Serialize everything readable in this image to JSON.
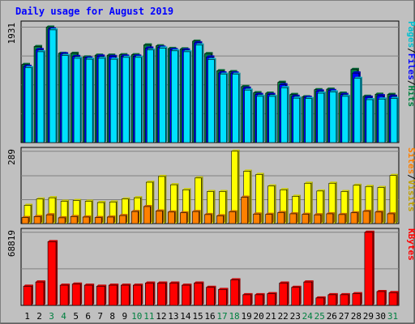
{
  "chart_data": [
    {
      "type": "bar",
      "panel": "hits-files-pages",
      "title": "Daily usage for August 2019",
      "categories": [
        "1",
        "2",
        "3",
        "4",
        "5",
        "6",
        "7",
        "8",
        "9",
        "10",
        "11",
        "12",
        "13",
        "14",
        "15",
        "16",
        "17",
        "18",
        "19",
        "20",
        "21",
        "22",
        "23",
        "24",
        "25",
        "26",
        "27",
        "28",
        "29",
        "30",
        "31"
      ],
      "weekend_days": [
        "3",
        "4",
        "10",
        "11",
        "17",
        "18",
        "24",
        "25",
        "31"
      ],
      "ymax_label": "1931",
      "ylim": [
        0,
        1931
      ],
      "series": [
        {
          "name": "Hits",
          "color": "#008040",
          "values": [
            1306,
            1606,
            1931,
            1493,
            1493,
            1431,
            1461,
            1461,
            1469,
            1469,
            1633,
            1618,
            1573,
            1566,
            1696,
            1488,
            1201,
            1186,
            936,
            833,
            826,
            1007,
            804,
            766,
            885,
            893,
            826,
            1223,
            774,
            808,
            804
          ]
        },
        {
          "name": "Files",
          "color": "#0000ff",
          "values": [
            1276,
            1555,
            1901,
            1486,
            1440,
            1415,
            1446,
            1440,
            1446,
            1446,
            1580,
            1595,
            1555,
            1550,
            1668,
            1431,
            1165,
            1163,
            909,
            804,
            804,
            967,
            774,
            758,
            863,
            870,
            804,
            1163,
            759,
            784,
            774
          ]
        },
        {
          "name": "Pages",
          "color": "#00e0ff",
          "values": [
            1253,
            1519,
            1885,
            1456,
            1410,
            1394,
            1410,
            1394,
            1425,
            1425,
            1549,
            1580,
            1534,
            1519,
            1633,
            1389,
            1144,
            1143,
            878,
            774,
            773,
            918,
            743,
            736,
            826,
            847,
            774,
            1074,
            718,
            728,
            738
          ]
        }
      ],
      "right_label": [
        "Pages",
        "/",
        "Files",
        "/",
        "Hits"
      ]
    },
    {
      "type": "bar",
      "panel": "visits-sites",
      "ymax_label": "289",
      "ylim": [
        0,
        289
      ],
      "series": [
        {
          "name": "Visits",
          "color": "#ffff00",
          "values": [
            73,
            98,
            103,
            89,
            92,
            89,
            84,
            86,
            98,
            103,
            165,
            188,
            155,
            135,
            182,
            128,
            128,
            289,
            209,
            196,
            150,
            135,
            109,
            161,
            130,
            161,
            128,
            153,
            148,
            144,
            192
          ]
        },
        {
          "name": "Sites",
          "color": "#ff8000",
          "values": [
            24,
            28,
            35,
            23,
            28,
            26,
            24,
            26,
            32,
            48,
            68,
            50,
            46,
            43,
            48,
            36,
            31,
            47,
            105,
            38,
            37,
            44,
            39,
            37,
            35,
            39,
            36,
            43,
            49,
            46,
            39
          ]
        }
      ],
      "right_label": [
        "Sites",
        "/",
        "Visits"
      ]
    },
    {
      "type": "bar",
      "panel": "kbytes",
      "ymax_label": "68819",
      "ylim": [
        0,
        68819
      ],
      "series": [
        {
          "name": "KBytes",
          "color": "#ff0000",
          "values": [
            18000,
            22000,
            60000,
            19000,
            20000,
            19000,
            18000,
            19000,
            19000,
            19000,
            21000,
            21000,
            21000,
            19000,
            21000,
            17000,
            15000,
            24000,
            10000,
            10000,
            11000,
            21000,
            17000,
            22000,
            7000,
            10000,
            10000,
            11000,
            68819,
            13000,
            12000
          ]
        }
      ],
      "right_label": [
        "KBytes"
      ]
    }
  ]
}
